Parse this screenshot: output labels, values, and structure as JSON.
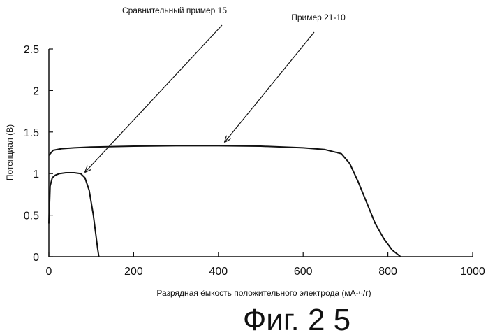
{
  "chart_data": {
    "type": "line",
    "title": "",
    "xlabel": "Разрядная ёмкость положительного электрода (мА-ч/г)",
    "ylabel": "Потенциал (В)",
    "xlim": [
      0,
      1000
    ],
    "ylim": [
      0,
      2.5
    ],
    "x_ticks": [
      "0",
      "200",
      "400",
      "600",
      "800",
      "1000"
    ],
    "y_ticks": [
      "0",
      "0.5",
      "1",
      "1.5",
      "2",
      "2.5"
    ],
    "grid": false,
    "series": [
      {
        "name": "Пример 21-10",
        "x": [
          0,
          10,
          30,
          60,
          100,
          200,
          300,
          400,
          500,
          600,
          650,
          690,
          710,
          730,
          750,
          770,
          790,
          810,
          830
        ],
        "y": [
          1.22,
          1.28,
          1.3,
          1.31,
          1.32,
          1.33,
          1.335,
          1.335,
          1.33,
          1.31,
          1.29,
          1.24,
          1.12,
          0.9,
          0.65,
          0.4,
          0.22,
          0.08,
          0.0
        ]
      },
      {
        "name": "Сравнительный пример 15",
        "x": [
          0,
          3,
          8,
          15,
          25,
          40,
          60,
          75,
          85,
          95,
          105,
          115,
          118
        ],
        "y": [
          0.4,
          0.85,
          0.95,
          0.98,
          1.0,
          1.01,
          1.01,
          1.0,
          0.95,
          0.8,
          0.5,
          0.1,
          0.0
        ]
      }
    ],
    "annotations": [
      {
        "text": "Сравнительный пример 15",
        "points_to_x": 85,
        "points_to_y": 1.01
      },
      {
        "text": "Пример 21-10",
        "points_to_x": 425,
        "points_to_y": 1.36
      }
    ]
  },
  "figure_label": "Фиг. 2 5"
}
